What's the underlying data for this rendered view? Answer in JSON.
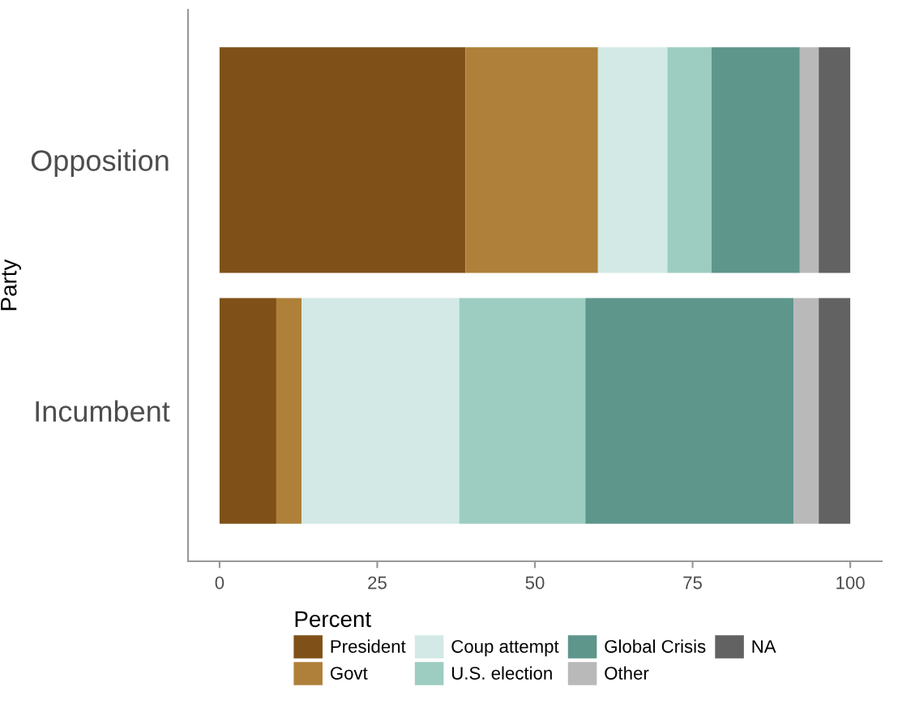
{
  "chart_data": {
    "type": "bar",
    "orientation": "horizontal",
    "stacked": true,
    "categories": [
      "Opposition",
      "Incumbent"
    ],
    "ylabel": "Party",
    "legend_title": "Percent",
    "legend": "bottom",
    "grid": false,
    "xlim": [
      -5,
      105
    ],
    "xticks": [
      0,
      25,
      50,
      75,
      100
    ],
    "series": [
      {
        "name": "President",
        "color": "#7f5118",
        "values": [
          39,
          9
        ]
      },
      {
        "name": "Govt",
        "color": "#af8039",
        "values": [
          21,
          4
        ]
      },
      {
        "name": "Coup attempt",
        "color": "#d2e9e5",
        "values": [
          11,
          25
        ]
      },
      {
        "name": "U.S. election",
        "color": "#9dcdc1",
        "values": [
          7,
          20
        ]
      },
      {
        "name": "Global Crisis",
        "color": "#5e968c",
        "values": [
          14,
          33
        ]
      },
      {
        "name": "Other",
        "color": "#b9b9b9",
        "values": [
          3,
          4
        ]
      },
      {
        "name": "NA",
        "color": "#626262",
        "values": [
          5,
          5
        ]
      }
    ]
  }
}
